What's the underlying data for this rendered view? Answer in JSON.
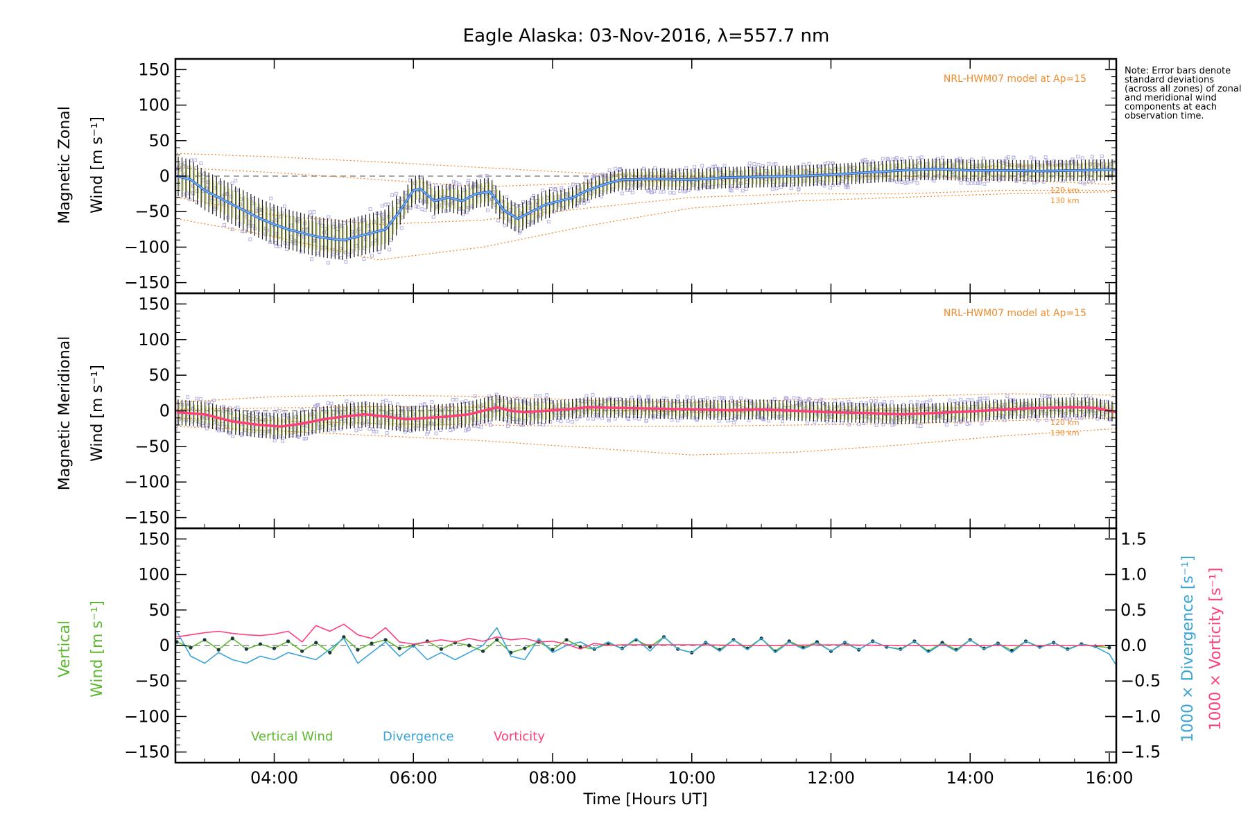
{
  "chart_data": [
    {
      "type": "line",
      "title": "Eagle Alaska: 03-Nov-2016, λ=557.7 nm",
      "ylabel_line1": "Magnetic Zonal",
      "ylabel_line2": "Wind [m s⁻¹]",
      "ylim": [
        -165,
        165
      ],
      "xlim": [
        2.58,
        16.1
      ],
      "yticks": [
        150,
        100,
        50,
        0,
        -50,
        -100,
        -150
      ],
      "model_label": "NRL-HWM07 model at Ap=15",
      "model_curves": [
        {
          "name": "120 km",
          "x": [
            2.6,
            4,
            5.5,
            7,
            8.5,
            10,
            11.5,
            13,
            14.5,
            16.1
          ],
          "y": [
            32,
            27,
            20,
            12,
            4,
            -2,
            0,
            8,
            14,
            18
          ]
        },
        {
          "name": "",
          "x": [
            2.6,
            4,
            5.5,
            7,
            8.5,
            10,
            11.5,
            13,
            14.5,
            16.1
          ],
          "y": [
            12,
            5,
            -5,
            -15,
            -10,
            -5,
            -2,
            0,
            -5,
            -12
          ]
        },
        {
          "name": "",
          "x": [
            2.6,
            4,
            5.5,
            7,
            8.5,
            10,
            11.5,
            13,
            14.5,
            16.1
          ],
          "y": [
            -30,
            -55,
            -68,
            -62,
            -45,
            -30,
            -25,
            -25,
            -20,
            -20
          ]
        },
        {
          "name": "130 km",
          "x": [
            2.6,
            4,
            5.5,
            7,
            8.5,
            10,
            11.5,
            13,
            14.5,
            16.1
          ],
          "y": [
            -60,
            -85,
            -118,
            -100,
            -70,
            -45,
            -35,
            -30,
            -25,
            -22
          ]
        }
      ],
      "curve_labels": [
        "120 km",
        "130 km"
      ],
      "series": [
        {
          "name": "zonal",
          "x": [
            2.6,
            2.8,
            3.0,
            3.2,
            3.4,
            3.6,
            3.8,
            4.0,
            4.2,
            4.4,
            4.6,
            4.8,
            5.0,
            5.2,
            5.4,
            5.6,
            5.8,
            6.0,
            6.1,
            6.3,
            6.5,
            6.7,
            6.9,
            7.1,
            7.3,
            7.5,
            7.7,
            7.9,
            8.1,
            8.3,
            8.5,
            8.8,
            9.0,
            9.5,
            10.0,
            10.5,
            11.0,
            11.5,
            12.0,
            12.5,
            13.0,
            13.5,
            14.0,
            14.5,
            15.0,
            15.5,
            16.1
          ],
          "y": [
            0,
            -5,
            -20,
            -30,
            -40,
            -50,
            -60,
            -68,
            -75,
            -80,
            -85,
            -88,
            -90,
            -85,
            -80,
            -75,
            -50,
            -20,
            -18,
            -35,
            -30,
            -35,
            -25,
            -22,
            -48,
            -60,
            -50,
            -40,
            -35,
            -30,
            -20,
            -10,
            -5,
            -4,
            -5,
            -2,
            -1,
            0,
            2,
            5,
            8,
            10,
            8,
            8,
            7,
            8,
            9
          ]
        }
      ],
      "error_bar_color": "#1a1a1a",
      "scatter_color": "#b4aee0",
      "series_color": "#2a4fd8"
    },
    {
      "type": "line",
      "ylabel_line1": "Magnetic Meridional",
      "ylabel_line2": "Wind [m s⁻¹]",
      "ylim": [
        -165,
        165
      ],
      "xlim": [
        2.58,
        16.1
      ],
      "yticks": [
        150,
        100,
        50,
        0,
        -50,
        -100,
        -150
      ],
      "model_label": "NRL-HWM07 model at Ap=15",
      "model_curves": [
        {
          "name": "120 km",
          "x": [
            2.6,
            4,
            5.5,
            7,
            8.5,
            10,
            11.5,
            13,
            14.5,
            16.1
          ],
          "y": [
            12,
            20,
            22,
            20,
            15,
            12,
            15,
            20,
            24,
            22
          ]
        },
        {
          "name": "",
          "x": [
            2.6,
            4,
            5.5,
            7,
            8.5,
            10,
            11.5,
            13,
            14.5,
            16.1
          ],
          "y": [
            2,
            4,
            6,
            5,
            2,
            -2,
            0,
            3,
            5,
            4
          ]
        },
        {
          "name": "",
          "x": [
            2.6,
            4,
            5.5,
            7,
            8.5,
            10,
            11.5,
            13,
            14.5,
            16.1
          ],
          "y": [
            -10,
            -14,
            -18,
            -20,
            -22,
            -22,
            -20,
            -18,
            -14,
            -10
          ]
        },
        {
          "name": "130 km",
          "x": [
            2.6,
            4,
            5.5,
            7,
            8.5,
            10,
            11.5,
            13,
            14.5,
            16.1
          ],
          "y": [
            -22,
            -28,
            -35,
            -42,
            -52,
            -62,
            -58,
            -48,
            -35,
            -25
          ]
        }
      ],
      "curve_labels": [
        "120 km",
        "130 km"
      ],
      "series": [
        {
          "name": "meridional",
          "x": [
            2.6,
            3.0,
            3.4,
            3.8,
            4.1,
            4.4,
            4.7,
            5.0,
            5.3,
            5.6,
            5.9,
            6.2,
            6.5,
            6.8,
            7.0,
            7.2,
            7.4,
            7.6,
            7.9,
            8.2,
            8.5,
            9.0,
            9.5,
            10.0,
            10.5,
            11.0,
            11.5,
            12.0,
            12.5,
            13.0,
            13.5,
            14.0,
            14.5,
            15.0,
            15.5,
            15.8,
            16.1
          ],
          "y": [
            -2,
            -5,
            -15,
            -20,
            -22,
            -18,
            -12,
            -8,
            -5,
            -8,
            -12,
            -10,
            -8,
            -5,
            0,
            5,
            0,
            -2,
            0,
            2,
            5,
            4,
            3,
            2,
            1,
            2,
            0,
            -2,
            -3,
            -5,
            -3,
            -1,
            2,
            4,
            5,
            4,
            -2
          ]
        }
      ],
      "error_bar_color": "#1a1a1a",
      "scatter_color": "#b4aee0",
      "series_color": "#ff3f7a"
    },
    {
      "type": "line",
      "ylabel_line1": "Vertical",
      "ylabel_line2": "Wind [m s⁻¹]",
      "ylim": [
        -165,
        165
      ],
      "xlim": [
        2.58,
        16.1
      ],
      "yticks": [
        150,
        100,
        50,
        0,
        -50,
        -100,
        -150
      ],
      "y2label_a": "1000 × Divergence [s⁻¹]",
      "y2label_b": "1000 × Vorticity [s⁻¹]",
      "y2lim": [
        -1.65,
        1.65
      ],
      "y2ticks": [
        1.5,
        1.0,
        0.5,
        0.0,
        -0.5,
        -1.0,
        -1.5
      ],
      "legend": [
        "Vertical Wind",
        "Divergence",
        "Vorticity"
      ],
      "xticks": [
        "04:00",
        "06:00",
        "08:00",
        "10:00",
        "12:00",
        "14:00",
        "16:00"
      ],
      "xtick_values": [
        4,
        6,
        8,
        10,
        12,
        14,
        16
      ],
      "xlabel": "Time [Hours UT]",
      "colors": {
        "vertical": "#5cb82e",
        "divergence": "#3aa4d8",
        "vorticity": "#ff3f7a",
        "dots": "#1c3a40"
      },
      "series": [
        {
          "name": "Vertical Wind",
          "axis": "left",
          "x": [
            2.6,
            2.8,
            3.0,
            3.2,
            3.4,
            3.6,
            3.8,
            4.0,
            4.2,
            4.4,
            4.6,
            4.8,
            5.0,
            5.2,
            5.4,
            5.6,
            5.8,
            6.0,
            6.2,
            6.4,
            6.6,
            6.8,
            7.0,
            7.2,
            7.4,
            7.6,
            7.8,
            8.0,
            8.2,
            8.4,
            8.6,
            8.8,
            9.0,
            9.2,
            9.4,
            9.6,
            9.8,
            10.0,
            10.2,
            10.4,
            10.6,
            10.8,
            11.0,
            11.2,
            11.4,
            11.6,
            11.8,
            12.0,
            12.2,
            12.4,
            12.6,
            12.8,
            13.0,
            13.2,
            13.4,
            13.6,
            13.8,
            14.0,
            14.2,
            14.4,
            14.6,
            14.8,
            15.0,
            15.2,
            15.4,
            15.6,
            15.8,
            16.0
          ],
          "y": [
            5,
            -3,
            8,
            -6,
            10,
            -5,
            2,
            -4,
            6,
            -8,
            4,
            -10,
            12,
            -6,
            3,
            8,
            -4,
            0,
            6,
            -5,
            4,
            0,
            -8,
            8,
            -10,
            -4,
            5,
            -6,
            8,
            -2,
            -5,
            3,
            -4,
            8,
            -2,
            12,
            -5,
            -10,
            4,
            -6,
            8,
            -4,
            10,
            -8,
            6,
            -3,
            5,
            -8,
            4,
            -6,
            6,
            -2,
            -5,
            6,
            -8,
            4,
            -6,
            8,
            -4,
            3,
            -7,
            6,
            -2,
            4,
            -5,
            2,
            -1,
            -3
          ]
        },
        {
          "name": "Divergence",
          "axis": "right",
          "x": [
            2.6,
            2.8,
            3.0,
            3.2,
            3.4,
            3.6,
            3.8,
            4.0,
            4.2,
            4.4,
            4.6,
            4.8,
            5.0,
            5.2,
            5.4,
            5.6,
            5.8,
            6.0,
            6.2,
            6.4,
            6.6,
            6.8,
            7.0,
            7.2,
            7.4,
            7.6,
            7.8,
            8.0,
            8.2,
            8.4,
            8.6,
            8.8,
            9.0,
            9.2,
            9.4,
            9.6,
            9.8,
            10.0,
            10.2,
            10.4,
            10.6,
            10.8,
            11.0,
            11.2,
            11.4,
            11.6,
            11.8,
            12.0,
            12.2,
            12.4,
            12.6,
            12.8,
            13.0,
            13.2,
            13.4,
            13.6,
            13.8,
            14.0,
            14.2,
            14.4,
            14.6,
            14.8,
            15.0,
            15.2,
            15.4,
            15.6,
            15.8,
            16.0,
            16.1
          ],
          "y": [
            0.2,
            -0.15,
            -0.25,
            -0.1,
            -0.2,
            -0.25,
            -0.15,
            -0.2,
            -0.1,
            -0.15,
            -0.2,
            -0.05,
            0.1,
            -0.25,
            -0.1,
            0.05,
            -0.15,
            0.0,
            -0.2,
            -0.1,
            -0.2,
            -0.1,
            0.0,
            0.25,
            -0.15,
            -0.2,
            0.1,
            -0.1,
            0.0,
            0.05,
            -0.05,
            0.05,
            -0.05,
            0.1,
            -0.08,
            0.12,
            -0.05,
            -0.1,
            0.05,
            -0.08,
            0.08,
            -0.06,
            0.1,
            -0.1,
            0.05,
            -0.05,
            0.04,
            -0.08,
            0.05,
            -0.06,
            0.06,
            -0.02,
            -0.06,
            0.06,
            -0.1,
            0.03,
            -0.08,
            0.08,
            -0.05,
            0.03,
            -0.1,
            0.06,
            -0.03,
            0.04,
            -0.06,
            0.02,
            -0.02,
            -0.12,
            -0.28
          ]
        },
        {
          "name": "Vorticity",
          "axis": "right",
          "x": [
            2.6,
            2.8,
            3.0,
            3.2,
            3.4,
            3.6,
            3.8,
            4.0,
            4.2,
            4.4,
            4.6,
            4.8,
            5.0,
            5.2,
            5.4,
            5.6,
            5.8,
            6.0,
            6.2,
            6.4,
            6.6,
            6.8,
            7.0,
            7.2,
            7.4,
            7.6,
            7.8,
            8.0,
            8.2,
            8.4,
            8.6,
            8.8,
            9.0,
            10.0,
            11.0,
            12.0,
            13.0,
            14.0,
            15.0,
            16.0
          ],
          "y": [
            0.12,
            0.15,
            0.18,
            0.2,
            0.17,
            0.15,
            0.14,
            0.16,
            0.2,
            0.05,
            0.28,
            0.2,
            0.3,
            0.15,
            0.1,
            0.25,
            0.05,
            0.02,
            0.05,
            0.08,
            0.05,
            0.1,
            0.06,
            0.12,
            0.08,
            0.1,
            0.05,
            0.06,
            0.02,
            -0.05,
            0.03,
            0.0,
            0.01,
            0.01,
            0.0,
            0.01,
            0.0,
            0.0,
            0.0,
            0.0
          ]
        }
      ]
    }
  ],
  "note": "Note: Error bars denote standard deviations (across all zones) of zonal and meridional wind components at each observation time."
}
